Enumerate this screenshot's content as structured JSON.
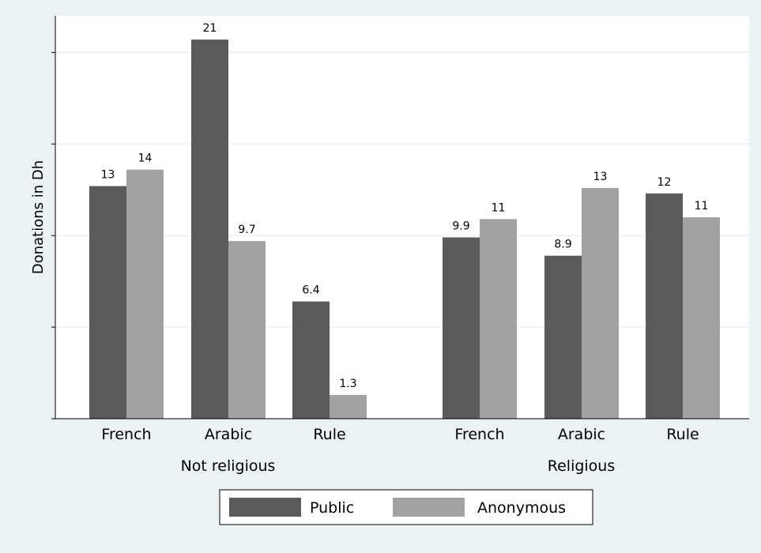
{
  "chart_data": {
    "type": "bar",
    "ylabel": "Donations in Dh",
    "xlabel": "",
    "title": "",
    "ylim": [
      0,
      22
    ],
    "grid": true,
    "y_ticks": [
      0,
      5,
      10,
      15,
      20
    ],
    "legend_position": "bottom",
    "groups": [
      "Not religious",
      "Religious"
    ],
    "categories": [
      "French",
      "Arabic",
      "Rule",
      "French",
      "Arabic",
      "Rule"
    ],
    "category_group": [
      0,
      0,
      0,
      1,
      1,
      1
    ],
    "series": [
      {
        "name": "Public",
        "color": "#5a5a5a",
        "values": [
          12.7,
          20.7,
          6.4,
          9.9,
          8.9,
          12.3
        ],
        "labels": [
          "13",
          "21",
          "6.4",
          "9.9",
          "8.9",
          "12"
        ]
      },
      {
        "name": "Anonymous",
        "color": "#a2a2a2",
        "values": [
          13.6,
          9.7,
          1.3,
          10.9,
          12.6,
          11.0
        ],
        "labels": [
          "14",
          "9.7",
          "1.3",
          "11",
          "13",
          "11"
        ]
      }
    ]
  },
  "colors": {
    "background": "#eaf2f3",
    "plot_area": "#ffffff",
    "gridline": "#eaf2f3",
    "axis": "#000000"
  }
}
